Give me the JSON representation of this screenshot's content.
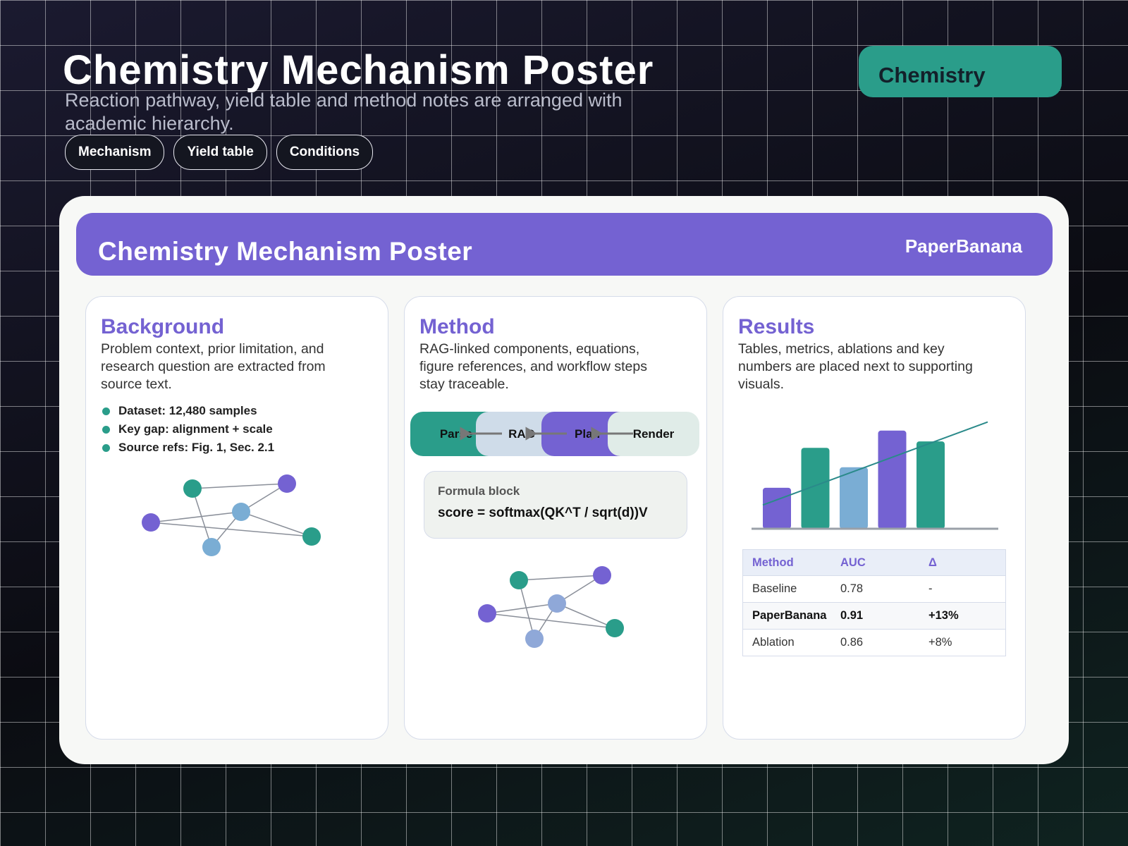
{
  "header": {
    "title": "Chemistry Mechanism Poster",
    "subtitle": "Reaction pathway, yield table and method notes are arranged with academic hierarchy.",
    "tags": [
      "Mechanism",
      "Yield table",
      "Conditions"
    ],
    "badge": "Chemistry"
  },
  "poster": {
    "title": "Chemistry Mechanism Poster",
    "brand": "PaperBanana",
    "background": {
      "heading": "Background",
      "text": "Problem context, prior limitation, and research question are extracted from source text.",
      "bullets": [
        "Dataset: 12,480 samples",
        "Key gap: alignment + scale",
        "Source refs: Fig. 1, Sec. 2.1"
      ]
    },
    "method": {
      "heading": "Method",
      "text": "RAG-linked components, equations, figure references, and workflow steps stay traceable.",
      "pipeline": [
        "Parse",
        "RAG",
        "Plan",
        "Render"
      ],
      "formula": {
        "label": "Formula block",
        "expression": "score = softmax(QK^T / sqrt(d))V"
      }
    },
    "results": {
      "heading": "Results",
      "text": "Tables, metrics, ablations and key numbers are placed next to supporting visuals.",
      "chart": {
        "type": "bar",
        "values": [
          38,
          75,
          57,
          91,
          81
        ],
        "colors": [
          "#7462d2",
          "#2a9d8a",
          "#7aadd4",
          "#7462d2",
          "#2a9d8a"
        ],
        "line": {
          "values": [
            22,
            99
          ],
          "color": "#2a8a8a"
        },
        "ylim": [
          0,
          100
        ]
      },
      "table": {
        "header": [
          "Method",
          "AUC",
          "Δ"
        ],
        "rows": [
          [
            "Baseline",
            "0.78",
            "-"
          ],
          [
            "PaperBanana",
            "0.91",
            "+13%"
          ],
          [
            "Ablation",
            "0.86",
            "+8%"
          ]
        ]
      }
    }
  }
}
